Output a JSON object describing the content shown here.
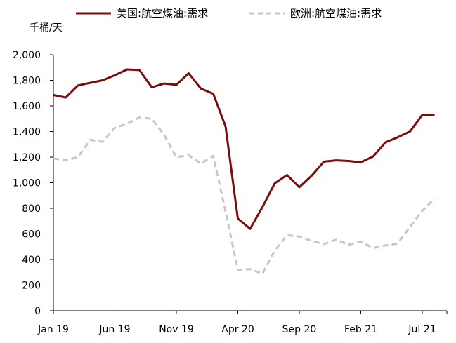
{
  "chart_data": {
    "type": "line",
    "y_unit": "千桶/天",
    "ylim": [
      0,
      2000
    ],
    "y_ticks": [
      "0",
      "200",
      "400",
      "600",
      "800",
      "1,000",
      "1,200",
      "1,400",
      "1,600",
      "1,800",
      "2,000"
    ],
    "x_tick_labels": [
      "Jan 19",
      "Jun 19",
      "Nov 19",
      "Apr 20",
      "Sep 20",
      "Feb 21",
      "Jul 21"
    ],
    "x": [
      "2019-01",
      "2019-02",
      "2019-03",
      "2019-04",
      "2019-05",
      "2019-06",
      "2019-07",
      "2019-08",
      "2019-09",
      "2019-10",
      "2019-11",
      "2019-12",
      "2020-01",
      "2020-02",
      "2020-03",
      "2020-04",
      "2020-05",
      "2020-06",
      "2020-07",
      "2020-08",
      "2020-09",
      "2020-10",
      "2020-11",
      "2020-12",
      "2021-01",
      "2021-02",
      "2021-03",
      "2021-04",
      "2021-05",
      "2021-06",
      "2021-07",
      "2021-08"
    ],
    "series": [
      {
        "name": "美国:航空煤油:需求",
        "color": "#7b0c0c",
        "style": "solid",
        "values": [
          1685,
          1665,
          1760,
          1780,
          1800,
          1840,
          1885,
          1880,
          1745,
          1775,
          1765,
          1855,
          1735,
          1695,
          1440,
          720,
          640,
          810,
          995,
          1060,
          965,
          1055,
          1165,
          1175,
          1170,
          1160,
          1205,
          1315,
          1355,
          1400,
          1530,
          1530
        ]
      },
      {
        "name": "欧洲:航空煤油:需求",
        "color": "#c8c8bc",
        "style": "dashed",
        "values": [
          1190,
          1175,
          1200,
          1335,
          1320,
          1430,
          1460,
          1510,
          1500,
          1375,
          1200,
          1215,
          1150,
          1210,
          775,
          320,
          325,
          290,
          470,
          590,
          580,
          545,
          520,
          555,
          515,
          540,
          490,
          510,
          525,
          655,
          780,
          875
        ]
      }
    ],
    "grid": false,
    "legend_position": "top"
  }
}
